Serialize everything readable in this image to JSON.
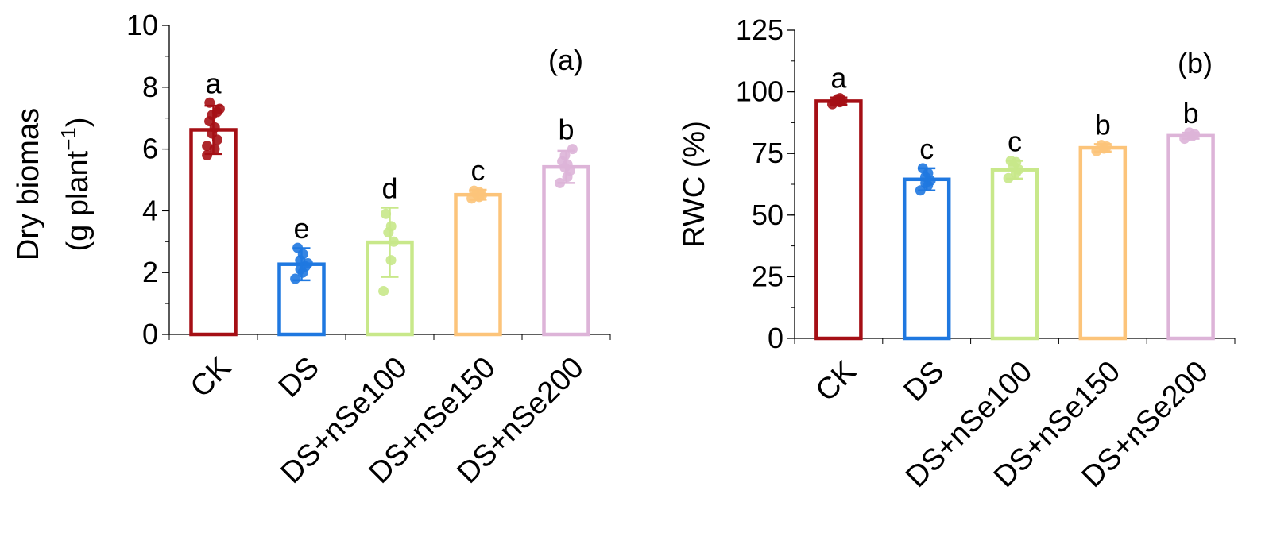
{
  "chart_data": [
    {
      "type": "bar",
      "panel_label": "(a)",
      "ylabel_line1": "Dry biomas",
      "ylabel_line2": "(g plant",
      "ylabel_sup": "−1",
      "ylabel_close": ")",
      "categories": [
        "CK",
        "DS",
        "DS+nSe100",
        "DS+nSe150",
        "DS+nSe200"
      ],
      "values": [
        6.62,
        2.27,
        2.98,
        4.52,
        5.42
      ],
      "errors": [
        0.78,
        0.52,
        1.12,
        0.16,
        0.52
      ],
      "letters": [
        "a",
        "e",
        "d",
        "c",
        "b"
      ],
      "points": [
        [
          5.8,
          6.0,
          6.3,
          6.5,
          6.7,
          6.9,
          7.1,
          7.3,
          7.5,
          7.2,
          6.1
        ],
        [
          1.8,
          2.0,
          2.2,
          2.4,
          2.6,
          2.8,
          2.1,
          2.3
        ],
        [
          1.4,
          2.4,
          3.0,
          3.3,
          3.5,
          3.9
        ],
        [
          4.4,
          4.45,
          4.5,
          4.55,
          4.6,
          4.65
        ],
        [
          4.9,
          5.1,
          5.3,
          5.4,
          5.5,
          5.6,
          5.8,
          6.0
        ]
      ],
      "ylim": [
        0,
        10
      ],
      "yticks": [
        "0",
        "2",
        "4",
        "6",
        "8",
        "10"
      ],
      "ytick_values": [
        0,
        2,
        4,
        6,
        8,
        10
      ],
      "minor_step": 1
    },
    {
      "type": "bar",
      "panel_label": "(b)",
      "ylabel": "RWC (%)",
      "categories": [
        "CK",
        "DS",
        "DS+nSe100",
        "DS+nSe150",
        "DS+nSe200"
      ],
      "values": [
        96.2,
        64.5,
        68.4,
        77.3,
        82.2
      ],
      "errors": [
        1.5,
        4.5,
        3.6,
        1.5,
        1.2
      ],
      "letters": [
        "a",
        "c",
        "c",
        "b",
        "b"
      ],
      "points": [
        [
          95.0,
          95.8,
          96.4,
          97.0,
          97.4,
          96.0
        ],
        [
          60.0,
          62.0,
          64.0,
          65.5,
          67.0,
          69.0,
          63.0
        ],
        [
          65.0,
          67.0,
          68.5,
          70.0,
          71.5,
          72.0
        ],
        [
          76.0,
          77.0,
          77.8,
          78.4
        ],
        [
          81.0,
          82.0,
          82.8,
          83.5
        ]
      ],
      "ylim": [
        0,
        125
      ],
      "yticks": [
        "0",
        "25",
        "50",
        "75",
        "100",
        "125"
      ],
      "ytick_values": [
        0,
        25,
        50,
        75,
        100,
        125
      ],
      "minor_step": 12.5
    }
  ],
  "colors": [
    "#a50f15",
    "#1f78e0",
    "#c8e88a",
    "#fcc47a",
    "#ddb4d8"
  ]
}
